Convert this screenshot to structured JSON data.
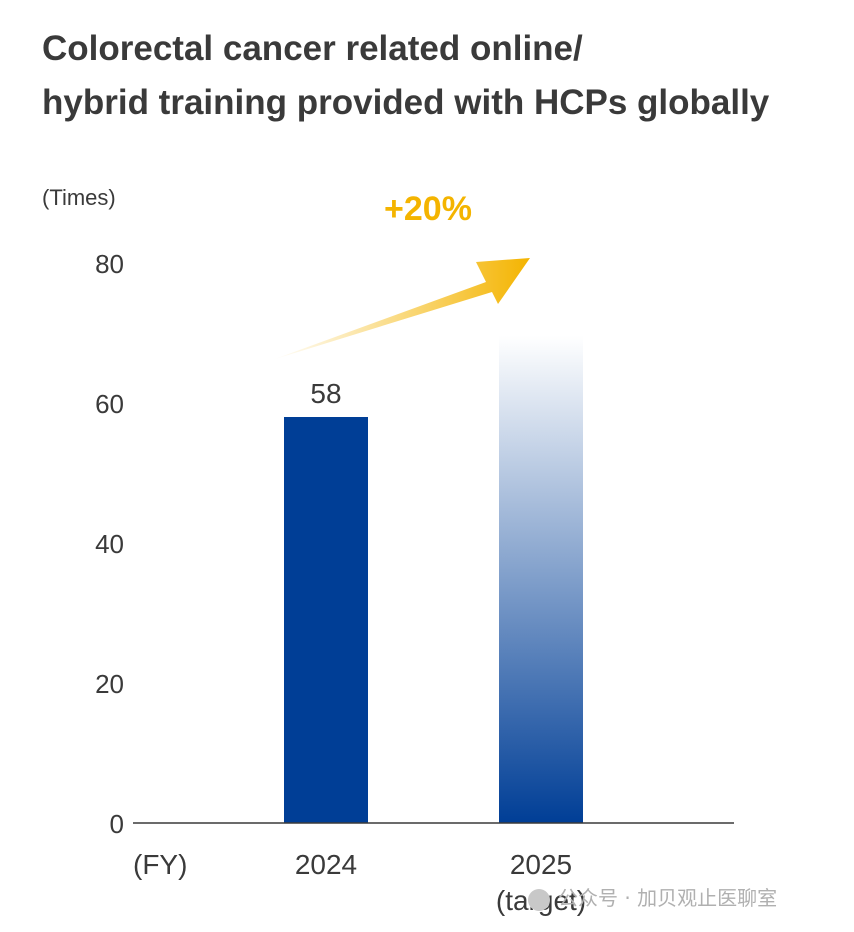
{
  "title_lines": [
    "Colorectal cancer related online/",
    "hybrid training provided with HCPs globally"
  ],
  "colors": {
    "bar_actual": "#003e96",
    "bar_target_top": "#ffffff",
    "bar_target_bottom": "#003e96",
    "accent": "#f4b400",
    "text": "#3a3a3a"
  },
  "chart_data": {
    "type": "bar",
    "title": "Colorectal cancer related online/ hybrid training provided with HCPs globally",
    "ylabel": "(Times)",
    "xlabel": "(FY)",
    "ylim": [
      0,
      80
    ],
    "yticks": [
      0,
      20,
      40,
      60,
      80
    ],
    "categories": [
      {
        "label": "2024",
        "sublabel": ""
      },
      {
        "label": "2025",
        "sublabel": "(target)"
      }
    ],
    "values": [
      58,
      69.6
    ],
    "data_labels": [
      "58",
      ""
    ],
    "annotation": "+20%",
    "grid": false,
    "legend": "none"
  },
  "watermark": "公众号 · 加贝观止医聊室"
}
